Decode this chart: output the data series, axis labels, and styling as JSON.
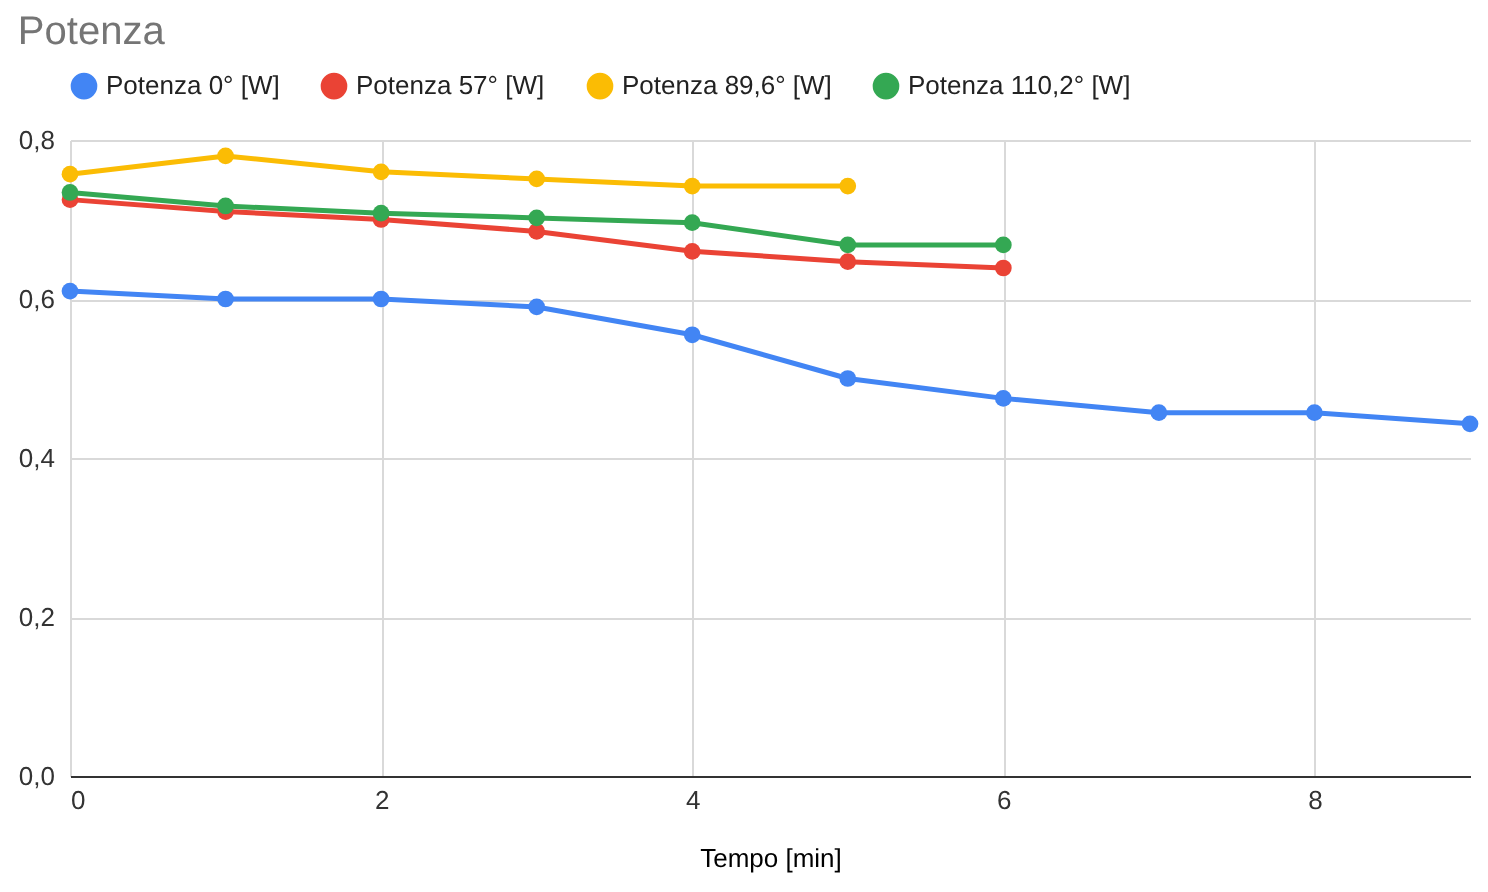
{
  "chart_data": {
    "type": "line",
    "title": "Potenza",
    "xlabel": "Tempo [min]",
    "x": [
      0,
      1,
      2,
      3,
      4,
      5,
      6,
      7,
      8,
      9
    ],
    "series": [
      {
        "name": "Potenza 0° [W]",
        "color": "#4285f4",
        "values": [
          0.61,
          0.6,
          0.6,
          0.59,
          0.555,
          0.5,
          0.475,
          0.457,
          0.457,
          0.443
        ]
      },
      {
        "name": "Potenza 57° [W]",
        "color": "#ea4335",
        "values": [
          0.725,
          0.71,
          0.7,
          0.685,
          0.66,
          0.647,
          0.639,
          null,
          null,
          null
        ]
      },
      {
        "name": "Potenza 89,6° [W]",
        "color": "#fbbc04",
        "values": [
          0.757,
          0.78,
          0.76,
          0.751,
          0.742,
          0.742,
          null,
          null,
          null,
          null
        ]
      },
      {
        "name": "Potenza 110,2° [W]",
        "color": "#34a853",
        "values": [
          0.734,
          0.717,
          0.708,
          0.702,
          0.696,
          0.668,
          0.668,
          null,
          null,
          null
        ]
      }
    ],
    "xlim": [
      0,
      9
    ],
    "xticks": [
      0,
      2,
      4,
      6,
      8
    ],
    "ylim": [
      0,
      0.8
    ],
    "yticks": [
      {
        "value": 0,
        "label": "0,0"
      },
      {
        "value": 0.2,
        "label": "0,2"
      },
      {
        "value": 0.4,
        "label": "0,4"
      },
      {
        "value": 0.6,
        "label": "0,6"
      },
      {
        "value": 0.8,
        "label": "0,8"
      }
    ],
    "grid": true,
    "legend": "top",
    "marker": "circle",
    "line_style": "solid"
  }
}
